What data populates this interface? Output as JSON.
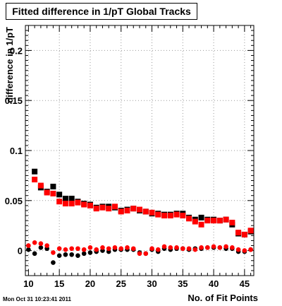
{
  "chart_data": {
    "type": "scatter",
    "title": "Fitted difference in 1/pT  Global Tracks",
    "xlabel": "No. of Fit Points",
    "ylabel": "difference in 1/pT",
    "xlim": [
      9.5,
      46.5
    ],
    "ylim": [
      -0.025,
      0.225
    ],
    "x_ticks": [
      10,
      15,
      20,
      25,
      30,
      35,
      40,
      45
    ],
    "y_ticks": [
      0,
      0.05,
      0.1,
      0.15,
      0.2
    ],
    "y_tick_labels": [
      "0",
      "0.05",
      "0.1",
      "0.15",
      "0.2"
    ],
    "grid": true,
    "colors": {
      "black": "#000000",
      "red": "#ff0000"
    },
    "series": [
      {
        "marker": "square",
        "color": "#000000",
        "x": [
          11,
          12,
          13,
          14,
          15,
          16,
          17,
          18,
          19,
          20,
          21,
          22,
          23,
          24,
          25,
          26,
          27,
          28,
          29,
          30,
          31,
          32,
          33,
          34,
          35,
          36,
          37,
          38,
          39,
          40,
          41,
          42,
          43,
          44,
          45,
          46
        ],
        "values": [
          0.079,
          0.063,
          0.059,
          0.064,
          0.056,
          0.052,
          0.052,
          0.049,
          0.047,
          0.046,
          0.043,
          0.044,
          0.044,
          0.043,
          0.04,
          0.041,
          0.042,
          0.04,
          0.039,
          0.037,
          0.037,
          0.036,
          0.036,
          0.037,
          0.037,
          0.033,
          0.031,
          0.033,
          0.031,
          0.031,
          0.03,
          0.031,
          0.026,
          0.017,
          0.016,
          0.019
        ]
      },
      {
        "marker": "square",
        "color": "#ff0000",
        "x": [
          11,
          12,
          13,
          14,
          15,
          16,
          17,
          18,
          19,
          20,
          21,
          22,
          23,
          24,
          25,
          26,
          27,
          28,
          29,
          30,
          31,
          32,
          33,
          34,
          35,
          36,
          37,
          38,
          39,
          40,
          41,
          42,
          43,
          44,
          45,
          46
        ],
        "values": [
          0.071,
          0.065,
          0.058,
          0.057,
          0.049,
          0.047,
          0.047,
          0.048,
          0.046,
          0.045,
          0.042,
          0.043,
          0.042,
          0.044,
          0.039,
          0.04,
          0.042,
          0.041,
          0.039,
          0.038,
          0.036,
          0.035,
          0.035,
          0.036,
          0.035,
          0.032,
          0.029,
          0.026,
          0.03,
          0.03,
          0.03,
          0.031,
          0.028,
          0.018,
          0.016,
          0.02
        ]
      },
      {
        "marker": "circle",
        "color": "#000000",
        "x": [
          10,
          11,
          12,
          13,
          14,
          15,
          16,
          17,
          18,
          19,
          20,
          21,
          22,
          23,
          24,
          25,
          26,
          27,
          28,
          29,
          30,
          31,
          32,
          33,
          34,
          35,
          36,
          37,
          38,
          39,
          40,
          41,
          42,
          43,
          44,
          45,
          46
        ],
        "values": [
          0.001,
          -0.003,
          0.003,
          0.002,
          -0.012,
          -0.005,
          -0.004,
          -0.004,
          -0.005,
          -0.003,
          -0.002,
          -0.001,
          0.0,
          -0.001,
          0.001,
          0.001,
          0.001,
          0.001,
          -0.002,
          -0.003,
          0.001,
          -0.001,
          0.002,
          0.001,
          0.002,
          0.002,
          0.001,
          0.002,
          0.002,
          0.003,
          0.003,
          0.003,
          0.002,
          0.002,
          -0.001,
          -0.001,
          0.001
        ]
      },
      {
        "marker": "circle",
        "color": "#ff0000",
        "x": [
          10,
          11,
          12,
          13,
          14,
          15,
          16,
          17,
          18,
          19,
          20,
          21,
          22,
          23,
          24,
          25,
          26,
          27,
          28,
          29,
          30,
          31,
          32,
          33,
          34,
          35,
          36,
          37,
          38,
          39,
          40,
          41,
          42,
          43,
          44,
          45,
          46
        ],
        "values": [
          0.005,
          0.008,
          0.007,
          0.005,
          -0.002,
          0.002,
          0.001,
          0.002,
          0.002,
          0.001,
          0.003,
          0.001,
          0.003,
          0.002,
          0.003,
          0.002,
          0.003,
          0.002,
          -0.003,
          -0.003,
          0.002,
          0.001,
          0.004,
          0.003,
          0.003,
          0.002,
          0.002,
          0.001,
          0.003,
          0.003,
          0.004,
          0.003,
          0.004,
          0.003,
          0.001,
          0.0,
          0.001
        ]
      }
    ]
  },
  "timestamp": "Mon Oct 31 10:23:41 2011"
}
